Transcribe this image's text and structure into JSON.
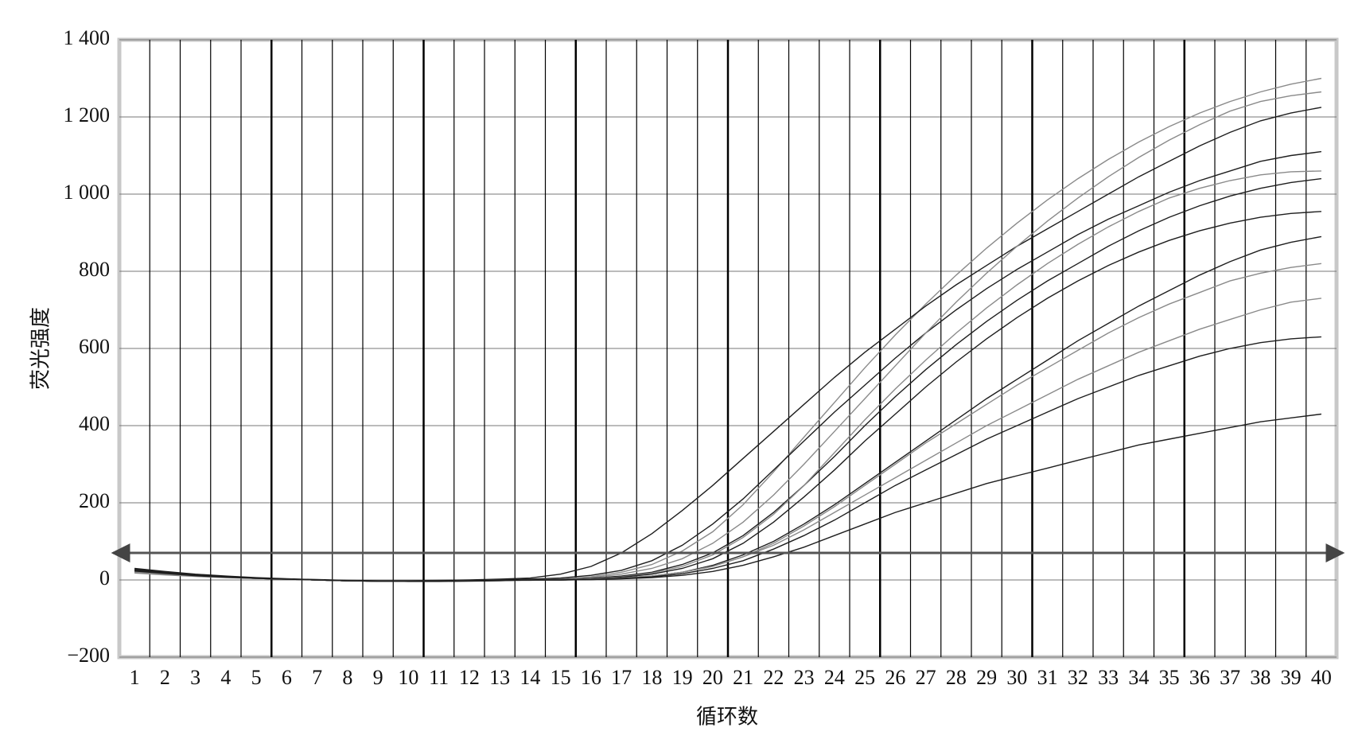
{
  "chart_data": {
    "type": "line",
    "x_label": "循环数",
    "y_label": "荧光强度",
    "categories": [
      "1",
      "2",
      "3",
      "4",
      "5",
      "6",
      "7",
      "8",
      "9",
      "10",
      "11",
      "12",
      "13",
      "14",
      "15",
      "16",
      "17",
      "18",
      "19",
      "20",
      "21",
      "22",
      "23",
      "24",
      "25",
      "26",
      "27",
      "28",
      "29",
      "30",
      "31",
      "32",
      "33",
      "34",
      "35",
      "36",
      "37",
      "38",
      "39",
      "40"
    ],
    "ylim": [
      -200,
      1400
    ],
    "yticks": [
      {
        "value": -200,
        "label": "−200"
      },
      0,
      200,
      400,
      600,
      800,
      {
        "value": 1000,
        "label": "1 000"
      },
      {
        "value": 1200,
        "label": "1 200"
      },
      {
        "value": 1400,
        "label": "1 400"
      }
    ],
    "grid": true,
    "threshold": 70,
    "series": [
      {
        "color": "#8a8a8a",
        "values": [
          25,
          18,
          12,
          8,
          5,
          2,
          0,
          -2,
          -3,
          -3,
          -3,
          -2,
          -1,
          -1,
          2,
          8,
          20,
          40,
          75,
          125,
          195,
          280,
          370,
          460,
          550,
          635,
          715,
          790,
          860,
          925,
          985,
          1040,
          1090,
          1135,
          1175,
          1210,
          1240,
          1265,
          1285,
          1300
        ]
      },
      {
        "color": "#1e1e1e",
        "values": [
          30,
          22,
          15,
          10,
          6,
          3,
          1,
          -1,
          -2,
          -2,
          -1,
          0,
          2,
          5,
          15,
          35,
          70,
          120,
          180,
          245,
          315,
          385,
          455,
          525,
          590,
          650,
          710,
          765,
          815,
          865,
          910,
          955,
          1000,
          1045,
          1085,
          1125,
          1160,
          1190,
          1210,
          1225
        ]
      },
      {
        "color": "#1e1e1e",
        "values": [
          22,
          16,
          11,
          7,
          4,
          2,
          0,
          -2,
          -3,
          -3,
          -2,
          -1,
          0,
          2,
          5,
          12,
          25,
          50,
          90,
          145,
          210,
          285,
          360,
          435,
          505,
          575,
          640,
          700,
          755,
          805,
          850,
          895,
          935,
          970,
          1005,
          1035,
          1060,
          1085,
          1100,
          1110
        ]
      },
      {
        "color": "#8a8a8a",
        "values": [
          20,
          15,
          10,
          7,
          4,
          2,
          0,
          -2,
          -3,
          -3,
          -3,
          -2,
          -1,
          0,
          2,
          6,
          15,
          30,
          55,
          95,
          150,
          220,
          300,
          385,
          470,
          555,
          640,
          720,
          795,
          865,
          930,
          990,
          1045,
          1095,
          1140,
          1180,
          1215,
          1240,
          1255,
          1265
        ]
      },
      {
        "color": "#1e1e1e",
        "values": [
          28,
          20,
          13,
          9,
          5,
          2,
          0,
          -2,
          -3,
          -4,
          -4,
          -3,
          -2,
          0,
          1,
          4,
          10,
          20,
          40,
          70,
          115,
          175,
          245,
          320,
          400,
          475,
          545,
          610,
          670,
          725,
          775,
          820,
          865,
          905,
          940,
          970,
          995,
          1015,
          1030,
          1040
        ]
      },
      {
        "color": "#8a8a8a",
        "values": [
          18,
          13,
          9,
          6,
          4,
          2,
          0,
          -2,
          -3,
          -3,
          -3,
          -2,
          -1,
          0,
          1,
          3,
          8,
          18,
          35,
          65,
          110,
          170,
          245,
          330,
          415,
          495,
          570,
          640,
          705,
          765,
          820,
          870,
          915,
          955,
          990,
          1015,
          1035,
          1050,
          1058,
          1060
        ]
      },
      {
        "color": "#1e1e1e",
        "values": [
          25,
          18,
          12,
          8,
          5,
          2,
          0,
          -2,
          -3,
          -3,
          -3,
          -2,
          -1,
          0,
          1,
          3,
          7,
          15,
          30,
          55,
          95,
          150,
          215,
          285,
          360,
          430,
          500,
          565,
          625,
          680,
          730,
          775,
          815,
          850,
          880,
          905,
          925,
          940,
          950,
          955
        ]
      },
      {
        "color": "#1e1e1e",
        "values": [
          24,
          17,
          12,
          8,
          5,
          2,
          0,
          -2,
          -3,
          -3,
          -3,
          -2,
          -1,
          0,
          0,
          2,
          5,
          10,
          20,
          38,
          65,
          100,
          145,
          195,
          250,
          305,
          360,
          415,
          470,
          520,
          570,
          620,
          665,
          710,
          750,
          790,
          825,
          855,
          875,
          890
        ]
      },
      {
        "color": "#8a8a8a",
        "values": [
          20,
          15,
          10,
          7,
          4,
          2,
          0,
          -2,
          -3,
          -3,
          -3,
          -2,
          -1,
          0,
          0,
          2,
          5,
          10,
          20,
          35,
          60,
          95,
          140,
          190,
          245,
          300,
          355,
          405,
          455,
          505,
          550,
          595,
          640,
          680,
          715,
          745,
          775,
          795,
          810,
          820
        ]
      },
      {
        "color": "#8a8a8a",
        "values": [
          22,
          16,
          11,
          7,
          4,
          2,
          0,
          -2,
          -3,
          -3,
          -3,
          -2,
          -1,
          0,
          0,
          2,
          5,
          10,
          20,
          35,
          60,
          90,
          130,
          175,
          220,
          265,
          310,
          355,
          400,
          440,
          480,
          520,
          555,
          590,
          620,
          650,
          675,
          700,
          720,
          730
        ]
      },
      {
        "color": "#1e1e1e",
        "values": [
          26,
          19,
          13,
          8,
          5,
          2,
          0,
          -2,
          -3,
          -3,
          -3,
          -2,
          -1,
          0,
          0,
          1,
          4,
          8,
          16,
          30,
          50,
          80,
          115,
          155,
          200,
          245,
          285,
          325,
          365,
          400,
          435,
          470,
          500,
          530,
          555,
          580,
          600,
          615,
          625,
          630
        ]
      },
      {
        "color": "#1e1e1e",
        "values": [
          23,
          17,
          11,
          7,
          4,
          2,
          0,
          -2,
          -3,
          -3,
          -3,
          -2,
          -1,
          0,
          0,
          1,
          3,
          6,
          12,
          22,
          38,
          60,
          85,
          115,
          145,
          175,
          200,
          225,
          250,
          270,
          290,
          310,
          330,
          350,
          365,
          380,
          395,
          410,
          420,
          430
        ]
      }
    ]
  }
}
